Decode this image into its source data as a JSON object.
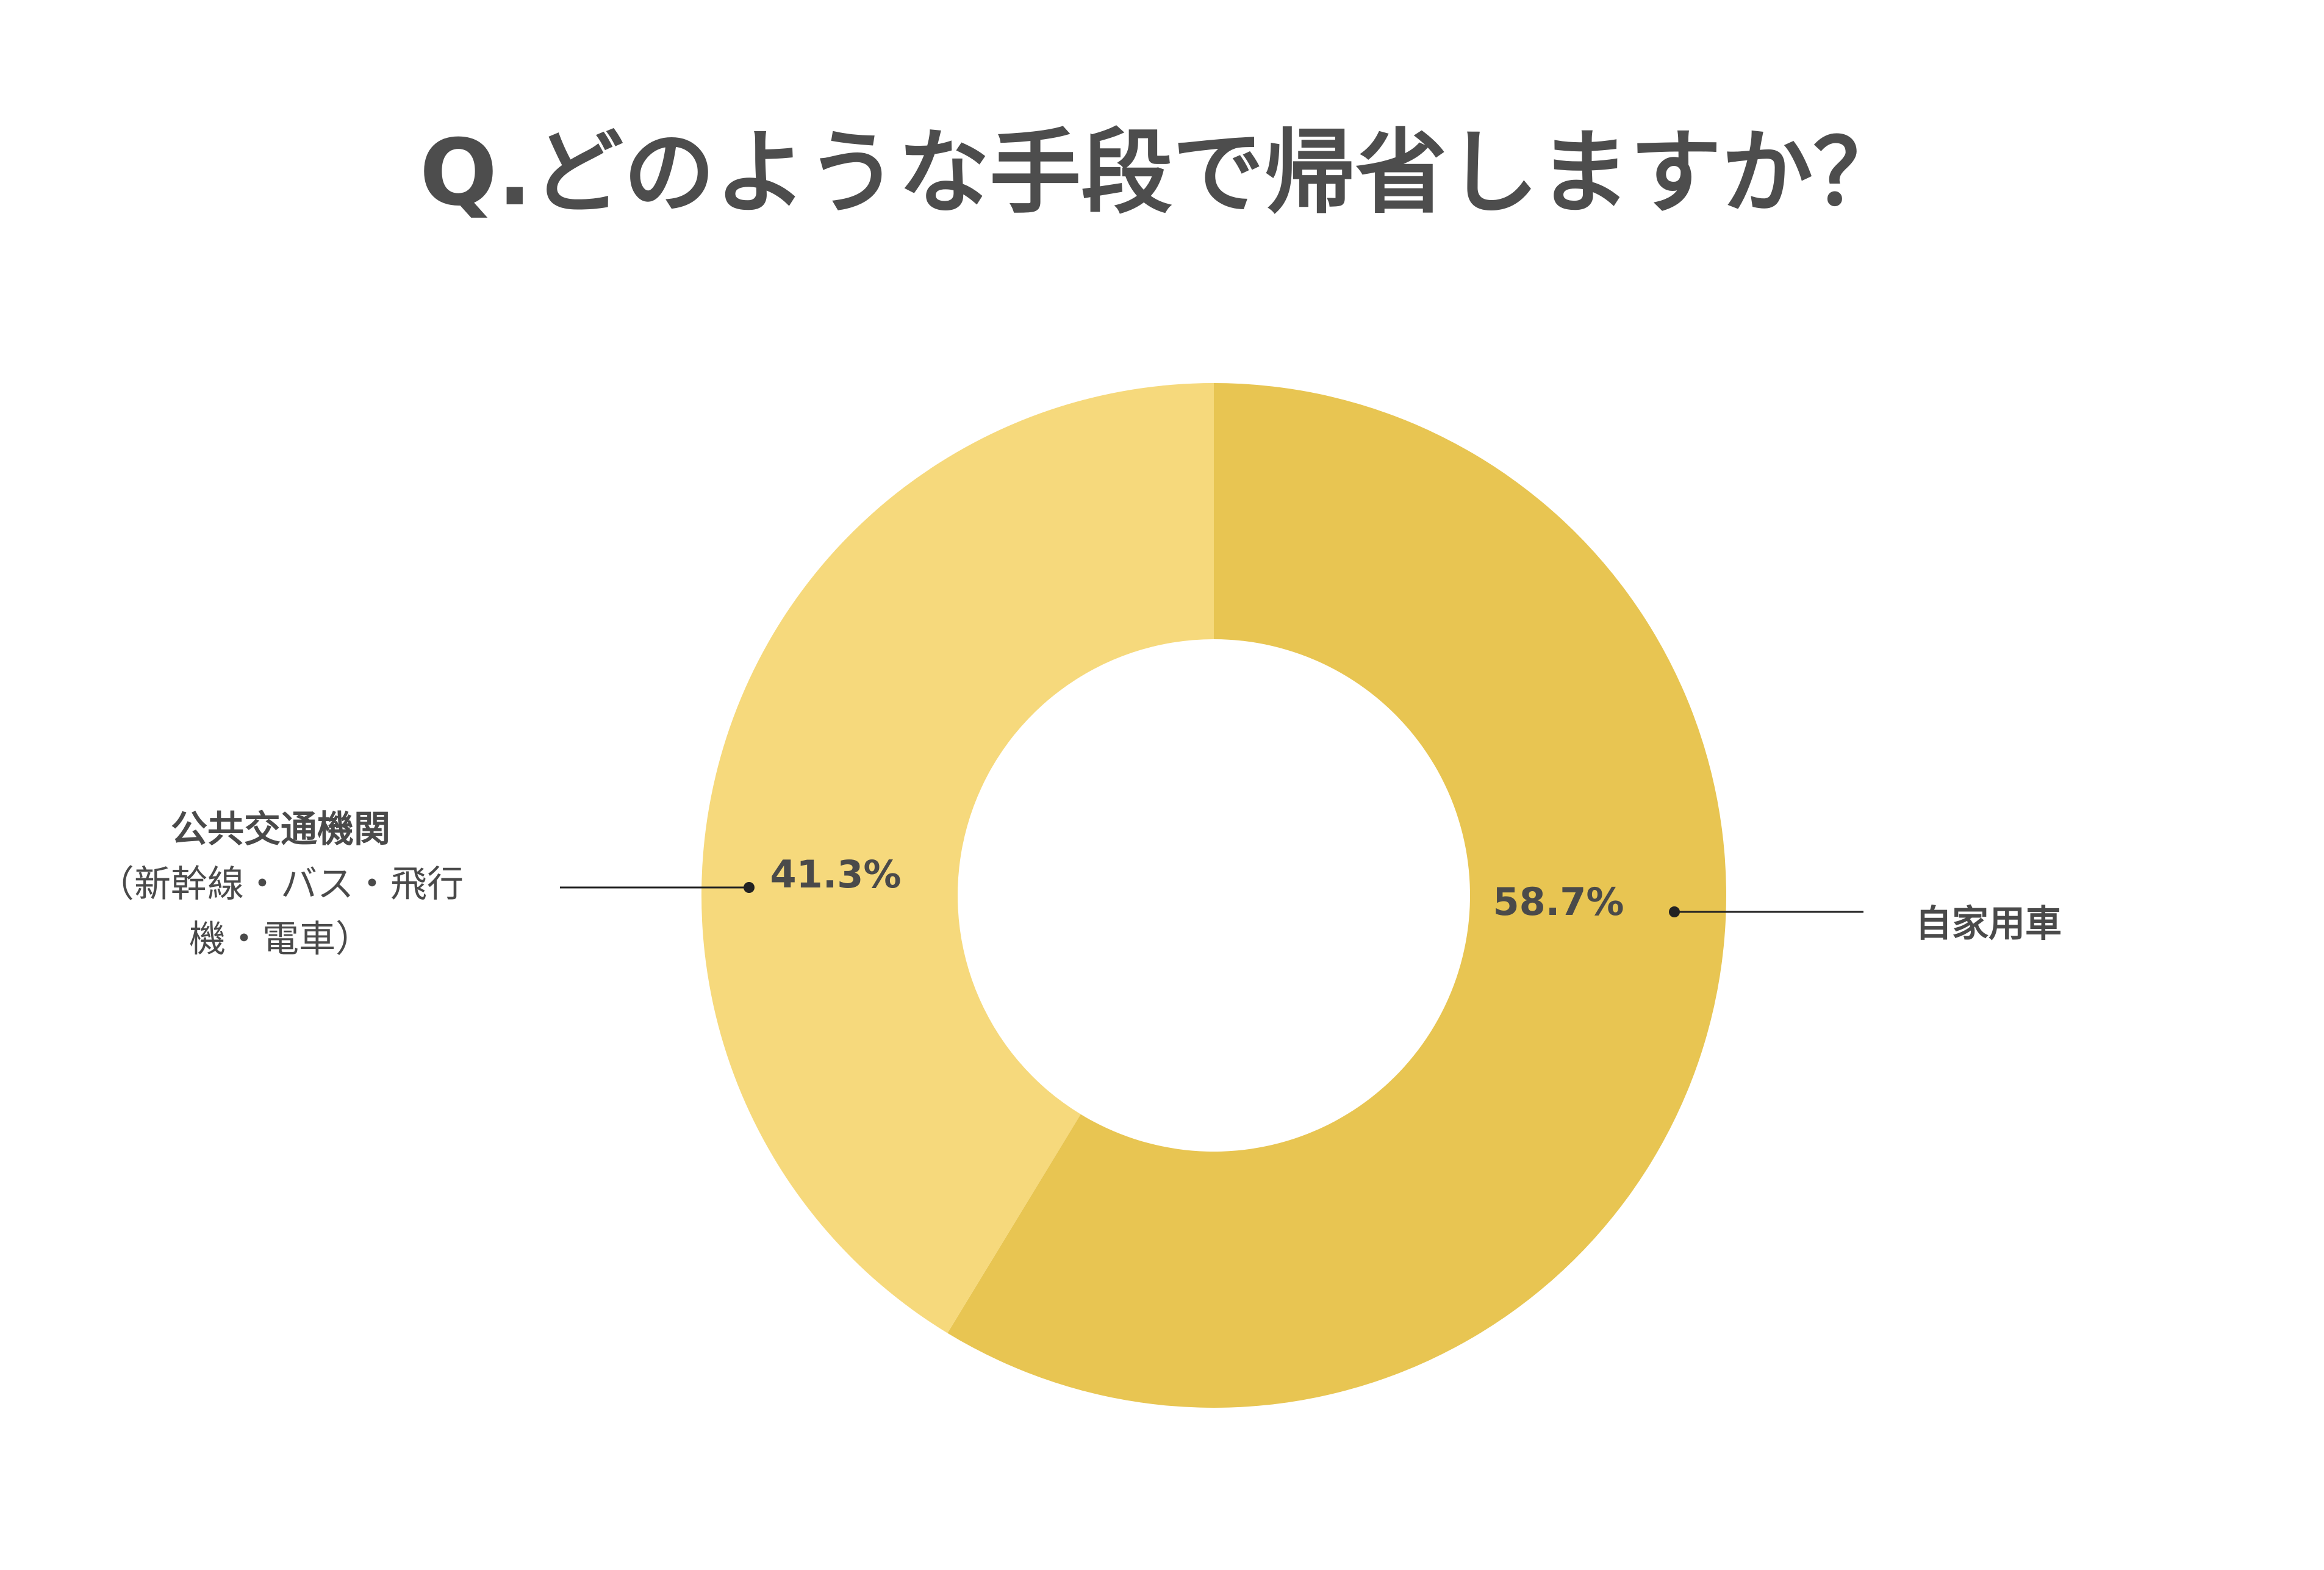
{
  "chart_data": {
    "type": "pie",
    "variant": "donut",
    "title": "Q.どのような手段で帰省しますか？",
    "legend": "callout-labels",
    "slices": [
      {
        "label": "自家用車",
        "note_lines": [],
        "value": 58.7,
        "value_label": "58.7%",
        "color": "#E8C552"
      },
      {
        "label": "公共交通機関",
        "note_lines": [
          "（新幹線・バス・飛行",
          "機・電車）"
        ],
        "value": 41.3,
        "value_label": "41.3%",
        "color": "#F6D97C"
      }
    ]
  }
}
